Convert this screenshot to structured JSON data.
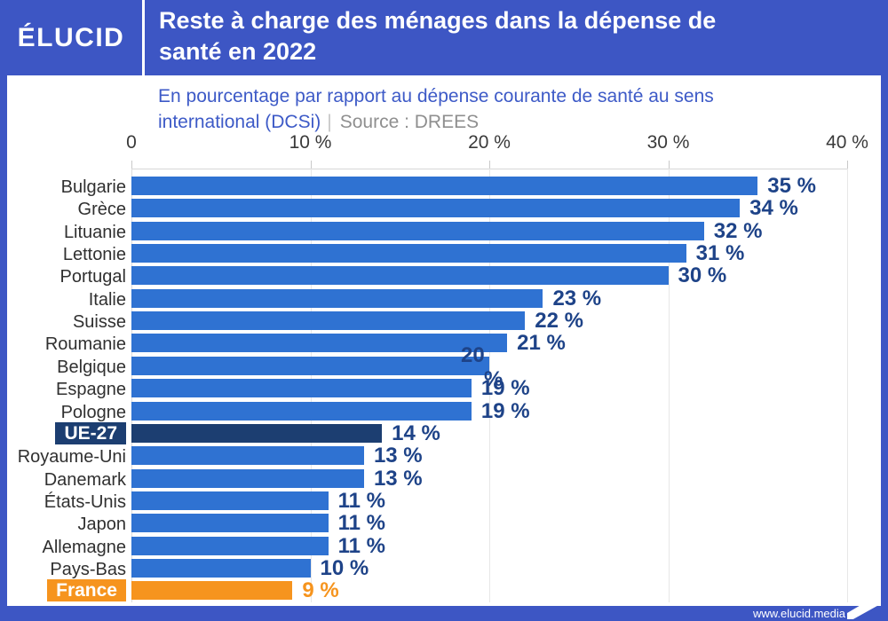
{
  "header": {
    "logo": "ÉLUCID",
    "title_line1": "Reste à charge des ménages dans la dépense de",
    "title_line2": "santé en 2022"
  },
  "subtitle": {
    "line1": "En pourcentage par rapport au dépense courante de santé au sens",
    "line2_blue": "international (DCSi)",
    "separator": "|",
    "source": "Source : DREES"
  },
  "chart_data": {
    "type": "bar",
    "orientation": "horizontal",
    "title": "Reste à charge des ménages dans la dépense de santé en 2022",
    "unit": "%",
    "xlim": [
      0,
      40
    ],
    "grid": true,
    "x_ticks": [
      {
        "label": "0",
        "value": 0
      },
      {
        "label": "10 %",
        "value": 10
      },
      {
        "label": "20 %",
        "value": 20
      },
      {
        "label": "30 %",
        "value": 30
      },
      {
        "label": "40 %",
        "value": 40
      }
    ],
    "rows": [
      {
        "label": "Bulgarie",
        "value": 35,
        "display": "35 %",
        "style": "default"
      },
      {
        "label": "Grèce",
        "value": 34,
        "display": "34 %",
        "style": "default"
      },
      {
        "label": "Lituanie",
        "value": 32,
        "display": "32 %",
        "style": "default"
      },
      {
        "label": "Lettonie",
        "value": 31,
        "display": "31 %",
        "style": "default"
      },
      {
        "label": "Portugal",
        "value": 30,
        "display": "30 %",
        "style": "default"
      },
      {
        "label": "Italie",
        "value": 23,
        "display": "23 %",
        "style": "default"
      },
      {
        "label": "Suisse",
        "value": 22,
        "display": "22 %",
        "style": "default"
      },
      {
        "label": "Roumanie",
        "value": 21,
        "display": "21 %",
        "style": "default"
      },
      {
        "label": "Belgique",
        "value": 20,
        "display": "20 %",
        "style": "default",
        "wrapped": true
      },
      {
        "label": "Espagne",
        "value": 19,
        "display": "19 %",
        "style": "default"
      },
      {
        "label": "Pologne",
        "value": 19,
        "display": "19 %",
        "style": "default"
      },
      {
        "label": "UE-27",
        "value": 14,
        "display": "14 %",
        "style": "eu"
      },
      {
        "label": "Royaume-Uni",
        "value": 13,
        "display": "13 %",
        "style": "default"
      },
      {
        "label": "Danemark",
        "value": 13,
        "display": "13 %",
        "style": "default"
      },
      {
        "label": "États-Unis",
        "value": 11,
        "display": "11 %",
        "style": "default"
      },
      {
        "label": "Japon",
        "value": 11,
        "display": "11 %",
        "style": "default"
      },
      {
        "label": "Allemagne",
        "value": 11,
        "display": "11 %",
        "style": "default"
      },
      {
        "label": "Pays-Bas",
        "value": 10,
        "display": "10 %",
        "style": "default"
      },
      {
        "label": "France",
        "value": 9,
        "display": "9 %",
        "style": "france"
      }
    ]
  },
  "colors": {
    "brand_blue": "#3d56c4",
    "bar_blue": "#2f72d2",
    "bar_navy": "#1c3e71",
    "bar_orange": "#f6941e",
    "value_navy": "#1e4388",
    "value_orange": "#f6941e"
  },
  "footer": {
    "url": "www.elucid.media"
  }
}
